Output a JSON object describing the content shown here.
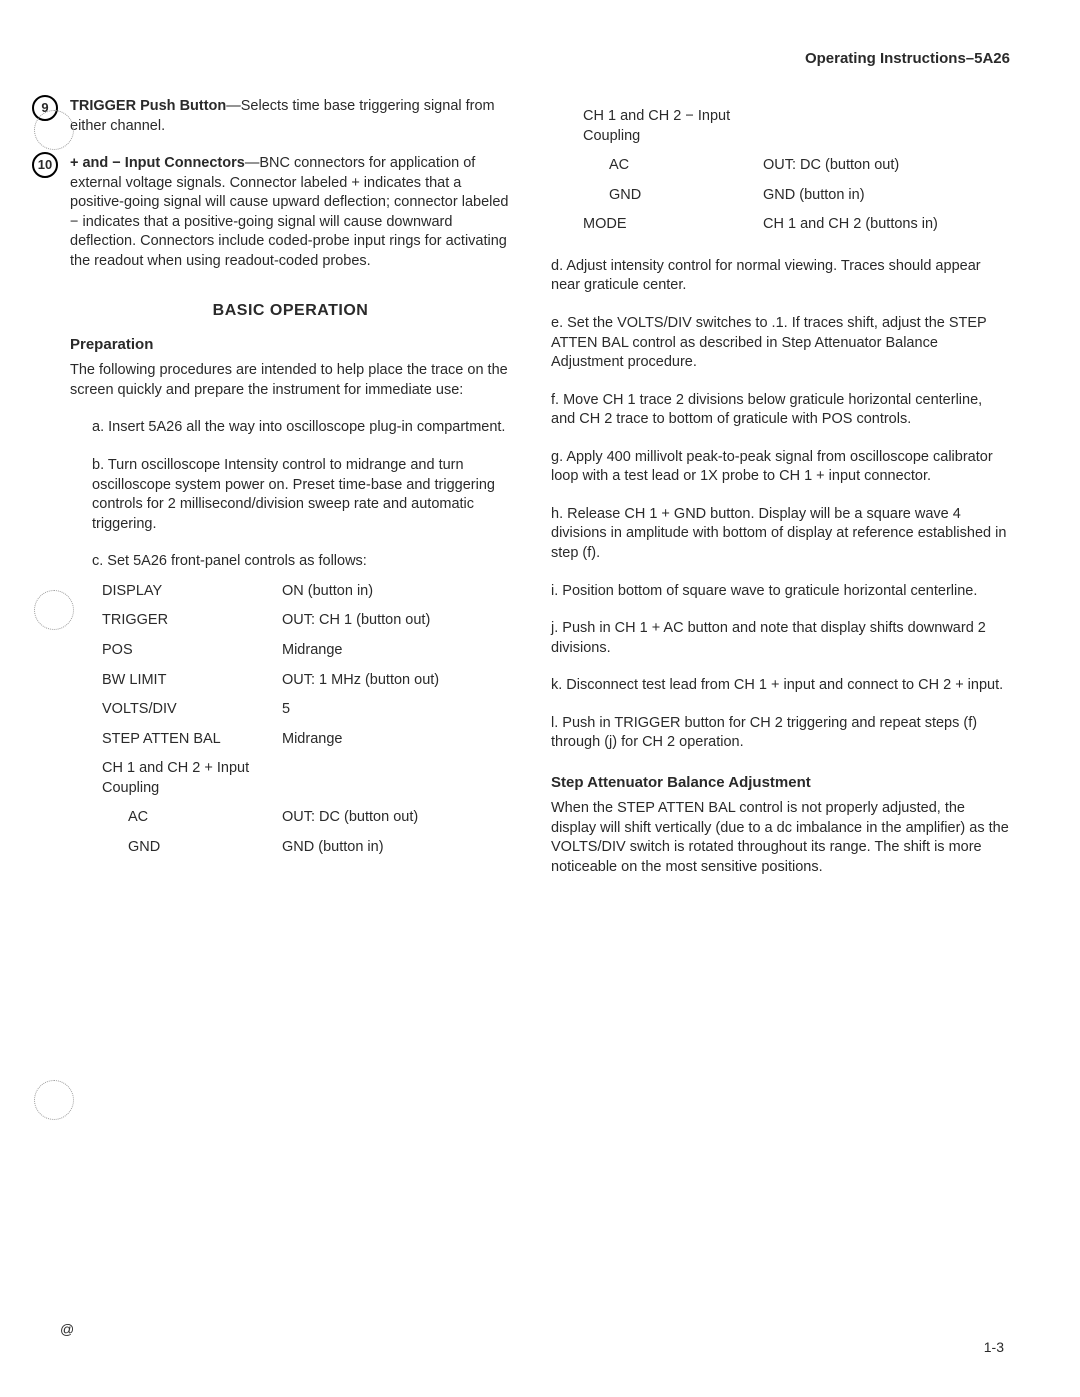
{
  "header": {
    "title": "Operating Instructions–5A26"
  },
  "left": {
    "item9": {
      "num": "9",
      "boldLead": "TRIGGER Push Button",
      "rest": "—Selects time base triggering signal from either channel."
    },
    "item10": {
      "num": "10",
      "boldLead": "+ and − Input Connectors",
      "rest": "—BNC connectors for application of external voltage signals. Connector labeled + indicates that a positive-going signal will cause upward deflection; connector labeled − indicates that a positive-going signal will cause downward deflection. Connectors include coded-probe input rings for activating the readout when using readout-coded probes."
    },
    "basicOp": "BASIC OPERATION",
    "prep": "Preparation",
    "prepIntro": "The following procedures are intended to help place the trace on the screen quickly and prepare the instrument for immediate use:",
    "stepA": "a.  Insert 5A26 all the way into oscilloscope plug-in compartment.",
    "stepB": "b.  Turn oscilloscope Intensity control to midrange and turn oscilloscope system power on. Preset time-base and triggering controls for 2 millisecond/division sweep rate and automatic triggering.",
    "stepC": "c.  Set 5A26 front-panel controls as follows:",
    "controls": [
      {
        "label": "DISPLAY",
        "value": "ON (button in)",
        "sub": false
      },
      {
        "label": "TRIGGER",
        "value": "OUT: CH 1 (button out)",
        "sub": false
      },
      {
        "label": "POS",
        "value": "Midrange",
        "sub": false
      },
      {
        "label": "BW LIMIT",
        "value": "OUT: 1 MHz (button out)",
        "sub": false
      },
      {
        "label": "VOLTS/DIV",
        "value": "5",
        "sub": false
      },
      {
        "label": "STEP ATTEN BAL",
        "value": "Midrange",
        "sub": false
      },
      {
        "label": "CH 1 and CH 2 + Input Coupling",
        "value": "",
        "sub": false
      },
      {
        "label": "AC",
        "value": "OUT: DC (button out)",
        "sub": true
      },
      {
        "label": "GND",
        "value": "GND (button in)",
        "sub": true
      }
    ]
  },
  "right": {
    "controls": [
      {
        "label": "CH 1 and CH 2 − Input Coupling",
        "value": "",
        "sub": false
      },
      {
        "label": "AC",
        "value": "OUT: DC (button out)",
        "sub": true
      },
      {
        "label": "GND",
        "value": "GND (button in)",
        "sub": true
      },
      {
        "label": "MODE",
        "value": "CH 1 and CH 2 (buttons in)",
        "sub": false
      }
    ],
    "stepD": "d.  Adjust intensity control for normal viewing. Traces should appear near graticule center.",
    "stepE": "e.  Set the VOLTS/DIV switches to .1. If traces shift, adjust the STEP ATTEN BAL control as described in Step Attenuator Balance Adjustment procedure.",
    "stepF": "f.  Move CH 1 trace 2 divisions below graticule horizontal centerline, and CH 2 trace to bottom of graticule with POS controls.",
    "stepG": "g.  Apply 400 millivolt peak-to-peak signal from oscilloscope calibrator loop with a test lead or 1X probe to CH 1 + input connector.",
    "stepH": "h.  Release CH 1 + GND button. Display will be a square wave 4 divisions in amplitude with bottom of display at reference established in step (f).",
    "stepI": "i.  Position bottom of square wave to graticule horizontal centerline.",
    "stepJ": "j.  Push in CH 1 + AC button and note that display shifts downward 2 divisions.",
    "stepK": "k.  Disconnect test lead from CH 1 + input and connect to CH 2 + input.",
    "stepL": "l.  Push in TRIGGER button for CH 2 triggering and repeat steps (f) through (j) for CH 2 operation.",
    "stepAttenHeading": "Step Attenuator Balance Adjustment",
    "stepAttenPara": "When the STEP ATTEN BAL control is not properly adjusted, the display will shift vertically (due to a dc imbalance in the amplifier) as the VOLTS/DIV switch is rotated throughout its range. The shift is more noticeable on the most sensitive positions."
  },
  "footer": {
    "pageNum": "1-3",
    "at": "@"
  },
  "colors": {
    "text": "#2a2a2a",
    "bg": "#ffffff"
  }
}
